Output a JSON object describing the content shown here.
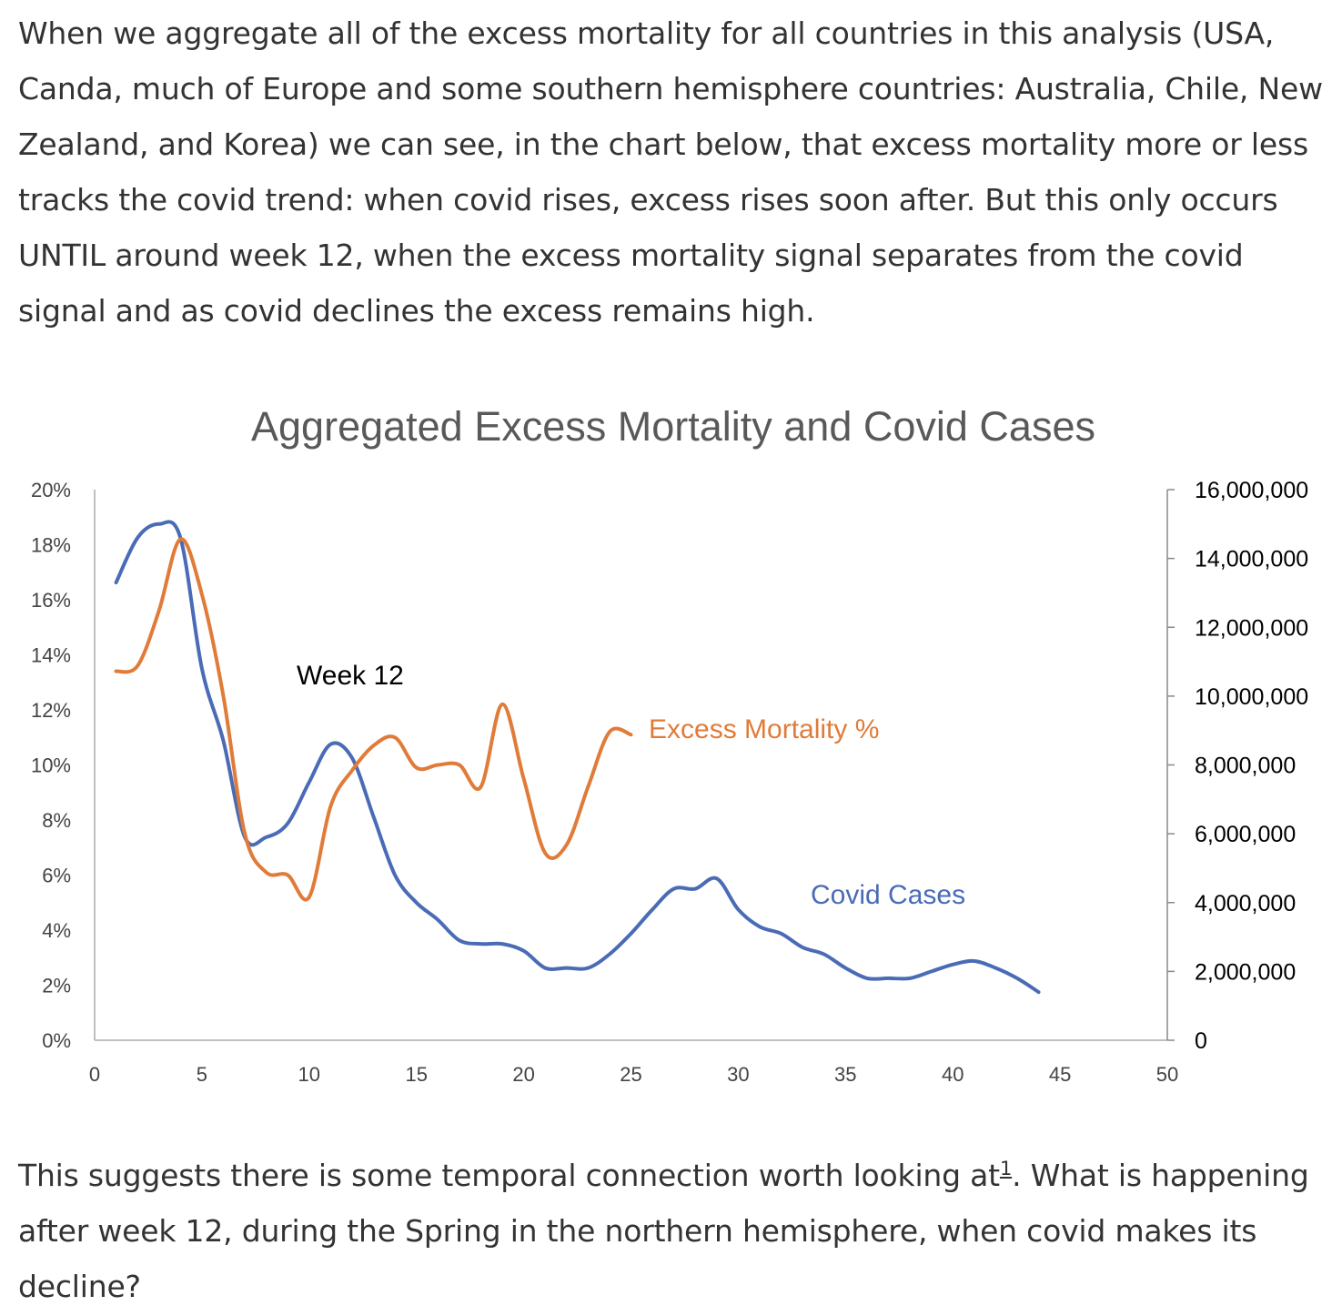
{
  "article": {
    "paragraph1": "When we aggregate all of the excess mortality for all countries in this analysis (USA, Canda, much of Europe and some southern hemisphere countries: Australia, Chile, New Zealand, and Korea) we can see, in the chart below, that excess mortality more or less tracks the covid trend: when covid rises, excess rises soon after. But this only occurs UNTIL around week 12, when the excess mortality signal separates from the covid signal and as covid declines the excess remains high.",
    "paragraph2_before": "This suggests there is some temporal connection worth looking at",
    "footnote_ref": "1",
    "paragraph2_after": ". What is happening after week 12, during the Spring in the northern hemisphere, when covid makes its decline?"
  },
  "chart_data": {
    "type": "line",
    "title": "Aggregated Excess Mortality and Covid Cases",
    "xlim": [
      0,
      50
    ],
    "x_ticks": [
      "0",
      "5",
      "10",
      "15",
      "20",
      "25",
      "30",
      "35",
      "40",
      "45",
      "50"
    ],
    "y_left_lim": [
      0,
      20
    ],
    "y_left_ticks": [
      "0%",
      "2%",
      "4%",
      "6%",
      "8%",
      "10%",
      "12%",
      "14%",
      "16%",
      "18%",
      "20%"
    ],
    "y_right_lim": [
      0,
      16000000
    ],
    "y_right_ticks": [
      "0",
      "2,000,000",
      "4,000,000",
      "6,000,000",
      "8,000,000",
      "10,000,000",
      "12,000,000",
      "14,000,000",
      "16,000,000"
    ],
    "grid": false,
    "series": [
      {
        "name": "Excess Mortality %",
        "axis": "left",
        "color": "#E07B39",
        "x": [
          1,
          2,
          3,
          4,
          5,
          6,
          7,
          8,
          9,
          10,
          11,
          12,
          13,
          14,
          15,
          16,
          17,
          18,
          19,
          20,
          21,
          22,
          23,
          24,
          25
        ],
        "y": [
          13.4,
          13.6,
          15.6,
          18.2,
          16.2,
          12.5,
          7.5,
          6.1,
          6.0,
          5.2,
          8.5,
          9.8,
          10.7,
          11.0,
          9.9,
          10.0,
          10.0,
          9.2,
          12.2,
          9.5,
          6.8,
          7.1,
          9.2,
          11.2,
          11.1
        ]
      },
      {
        "name": "Covid Cases",
        "axis": "right",
        "color": "#4A6BB5",
        "x": [
          1,
          2,
          3,
          4,
          5,
          6,
          7,
          8,
          9,
          10,
          11,
          12,
          13,
          14,
          15,
          16,
          17,
          18,
          19,
          20,
          21,
          22,
          23,
          24,
          25,
          26,
          27,
          28,
          29,
          30,
          31,
          32,
          33,
          34,
          35,
          36,
          37,
          38,
          39,
          40,
          41,
          42,
          43,
          44
        ],
        "y": [
          13300000,
          14600000,
          15000000,
          14600000,
          10800000,
          8700000,
          5900000,
          5900000,
          6300000,
          7500000,
          8600000,
          8200000,
          6500000,
          4800000,
          4000000,
          3500000,
          2900000,
          2800000,
          2800000,
          2600000,
          2100000,
          2100000,
          2100000,
          2500000,
          3100000,
          3800000,
          4400000,
          4400000,
          4700000,
          3800000,
          3300000,
          3100000,
          2700000,
          2500000,
          2100000,
          1800000,
          1800000,
          1800000,
          2000000,
          2200000,
          2300000,
          2100000,
          1800000,
          1400000
        ]
      }
    ],
    "annotations": [
      {
        "text": "Week 12",
        "color": "#000000"
      },
      {
        "text": "Excess Mortality %",
        "color": "#E07B39"
      },
      {
        "text": "Covid Cases",
        "color": "#4A6BB5"
      }
    ]
  }
}
